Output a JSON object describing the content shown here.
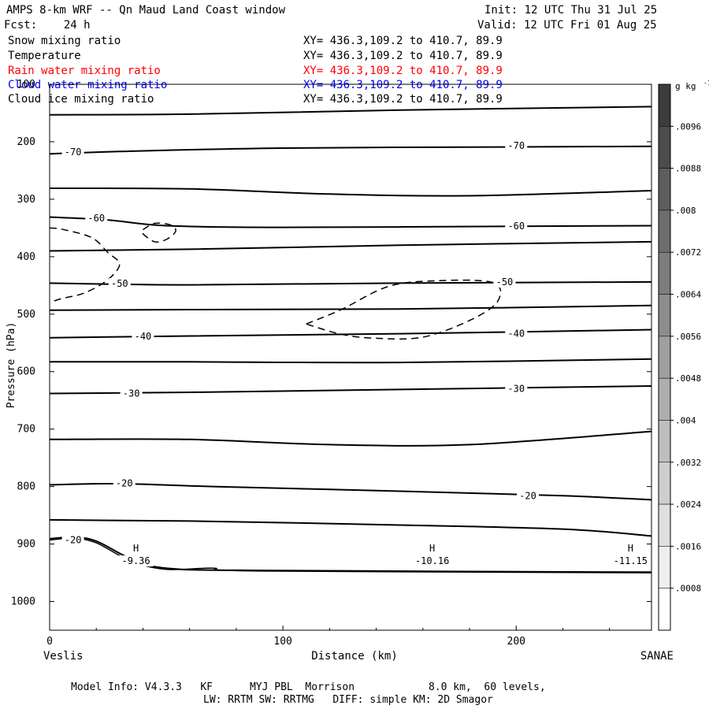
{
  "header": {
    "title": "AMPS 8-km WRF -- Qn Maud Land Coast window",
    "init": "Init: 12 UTC Thu 31 Jul 25",
    "fcst": "Fcst:    24 h",
    "valid": "Valid: 12 UTC Fri 01 Aug 25"
  },
  "fields": [
    {
      "name": "Snow mixing ratio",
      "xy": "XY= 436.3,109.2 to 410.7, 89.9",
      "color": "#000000"
    },
    {
      "name": "Temperature",
      "xy": "XY= 436.3,109.2 to 410.7, 89.9",
      "color": "#000000"
    },
    {
      "name": "Rain water mixing ratio",
      "xy": "XY= 436.3,109.2 to 410.7, 89.9",
      "color": "#ff0000"
    },
    {
      "name": "Cloud water mixing ratio",
      "xy": "XY= 436.3,109.2 to 410.7, 89.9",
      "color": "#0000ff"
    },
    {
      "name": "Cloud ice mixing ratio",
      "xy": "XY= 436.3,109.2 to 410.7, 89.9",
      "color": "#000000"
    }
  ],
  "chart_data": {
    "type": "contour cross-section",
    "xlabel": "Distance (km)",
    "ylabel": "Pressure (hPa)",
    "xlim": [
      0,
      258
    ],
    "ylim": [
      1050,
      100
    ],
    "x_ticks": [
      "0",
      "100",
      "200"
    ],
    "x_tick_values": [
      0,
      100,
      200
    ],
    "y_ticks": [
      "100",
      "200",
      "300",
      "400",
      "500",
      "600",
      "700",
      "800",
      "900",
      "1000"
    ],
    "y_tick_values": [
      100,
      200,
      300,
      400,
      500,
      600,
      700,
      800,
      900,
      1000
    ],
    "left_endpoint": "Veslis",
    "right_endpoint": "SANAE",
    "colorbar": {
      "unit_label": "g kg",
      "unit_exponent": "-1",
      "levels": [
        ".0096",
        ".0088",
        ".008",
        ".0072",
        ".0064",
        ".0056",
        ".0048",
        ".004",
        ".0032",
        ".0024",
        ".0016",
        ".0008"
      ],
      "level_values": [
        0.0096,
        0.0088,
        0.008,
        0.0072,
        0.0064,
        0.0056,
        0.0048,
        0.004,
        0.0032,
        0.0024,
        0.0016,
        0.0008
      ]
    },
    "isotherms": [
      {
        "points": [
          [
            0,
            153
          ],
          [
            60,
            152
          ],
          [
            150,
            145
          ],
          [
            258,
            139
          ]
        ]
      },
      {
        "label": "-70",
        "labels_at": [
          [
            10,
            218
          ],
          [
            200,
            207
          ]
        ],
        "points": [
          [
            0,
            221
          ],
          [
            30,
            217
          ],
          [
            100,
            211
          ],
          [
            200,
            209
          ],
          [
            258,
            208
          ]
        ]
      },
      {
        "points": [
          [
            0,
            281
          ],
          [
            60,
            282
          ],
          [
            120,
            291
          ],
          [
            180,
            294
          ],
          [
            258,
            285
          ]
        ]
      },
      {
        "label": "-60",
        "labels_at": [
          [
            20,
            333
          ],
          [
            200,
            347
          ]
        ],
        "points": [
          [
            0,
            331
          ],
          [
            25,
            336
          ],
          [
            50,
            346
          ],
          [
            100,
            349
          ],
          [
            200,
            347
          ],
          [
            258,
            346
          ]
        ]
      },
      {
        "points": [
          [
            0,
            390
          ],
          [
            60,
            387
          ],
          [
            150,
            380
          ],
          [
            258,
            374
          ]
        ]
      },
      {
        "label": "-50",
        "labels_at": [
          [
            30,
            447
          ],
          [
            195,
            444
          ]
        ],
        "points": [
          [
            0,
            446
          ],
          [
            60,
            449
          ],
          [
            150,
            446
          ],
          [
            258,
            444
          ]
        ]
      },
      {
        "points": [
          [
            0,
            493
          ],
          [
            60,
            492
          ],
          [
            150,
            491
          ],
          [
            258,
            485
          ]
        ]
      },
      {
        "label": "-40",
        "labels_at": [
          [
            40,
            539
          ],
          [
            200,
            534
          ]
        ],
        "points": [
          [
            0,
            541
          ],
          [
            60,
            538
          ],
          [
            150,
            534
          ],
          [
            258,
            527
          ]
        ]
      },
      {
        "points": [
          [
            0,
            583
          ],
          [
            60,
            583
          ],
          [
            150,
            584
          ],
          [
            258,
            578
          ]
        ]
      },
      {
        "label": "-30",
        "labels_at": [
          [
            35,
            638
          ],
          [
            200,
            630
          ]
        ],
        "points": [
          [
            0,
            638
          ],
          [
            60,
            636
          ],
          [
            150,
            631
          ],
          [
            258,
            625
          ]
        ]
      },
      {
        "points": [
          [
            0,
            718
          ],
          [
            60,
            718
          ],
          [
            120,
            727
          ],
          [
            180,
            727
          ],
          [
            258,
            704
          ]
        ]
      },
      {
        "label": "-20",
        "labels_at": [
          [
            32,
            794
          ],
          [
            205,
            816
          ]
        ],
        "points": [
          [
            0,
            797
          ],
          [
            30,
            795
          ],
          [
            70,
            800
          ],
          [
            150,
            808
          ],
          [
            220,
            816
          ],
          [
            258,
            823
          ]
        ]
      },
      {
        "points": [
          [
            0,
            858
          ],
          [
            60,
            860
          ],
          [
            150,
            867
          ],
          [
            220,
            874
          ],
          [
            258,
            886
          ]
        ]
      },
      {
        "label": "-20",
        "labels_at": [
          [
            10,
            893
          ]
        ],
        "points": [
          [
            0,
            891
          ],
          [
            10,
            888
          ],
          [
            20,
            895
          ],
          [
            35,
            926
          ],
          [
            50,
            942
          ],
          [
            90,
            946
          ],
          [
            258,
            949
          ]
        ]
      }
    ],
    "surface_line": {
      "points": [
        [
          0,
          893
        ],
        [
          10,
          890
        ],
        [
          20,
          898
        ],
        [
          35,
          930
        ],
        [
          50,
          944
        ],
        [
          70,
          942
        ],
        [
          90,
          947
        ],
        [
          258,
          950
        ]
      ]
    },
    "surface_marks": [
      {
        "mark": "H",
        "value": "-9.36",
        "x": 37,
        "p": 935
      },
      {
        "mark": "H",
        "value": "-10.16",
        "x": 164,
        "p": 935
      },
      {
        "mark": "H",
        "value": "-11.15",
        "x": 249,
        "p": 935
      }
    ],
    "cloud_ice_contours": [
      {
        "points": [
          [
            0,
            350
          ],
          [
            5,
            352
          ],
          [
            15,
            362
          ],
          [
            20,
            372
          ],
          [
            25,
            393
          ],
          [
            30,
            413
          ],
          [
            25,
            440
          ],
          [
            15,
            463
          ],
          [
            5,
            473
          ],
          [
            0,
            480
          ]
        ]
      },
      {
        "points": [
          [
            40,
            353
          ],
          [
            45,
            342
          ],
          [
            52,
            345
          ],
          [
            54,
            356
          ],
          [
            50,
            370
          ],
          [
            45,
            374
          ],
          [
            40,
            360
          ],
          [
            40,
            353
          ]
        ]
      },
      {
        "points": [
          [
            110,
            517
          ],
          [
            125,
            492
          ],
          [
            145,
            452
          ],
          [
            165,
            442
          ],
          [
            190,
            445
          ],
          [
            192,
            478
          ],
          [
            180,
            511
          ],
          [
            160,
            540
          ],
          [
            140,
            542
          ],
          [
            125,
            535
          ],
          [
            110,
            517
          ]
        ]
      }
    ]
  },
  "model_info": {
    "line1": "Model Info: V4.3.3   KF      MYJ PBL  Morrison            8.0 km,  60 levels,",
    "line2": "LW: RRTM SW: RRTMG   DIFF: simple KM: 2D Smagor"
  }
}
